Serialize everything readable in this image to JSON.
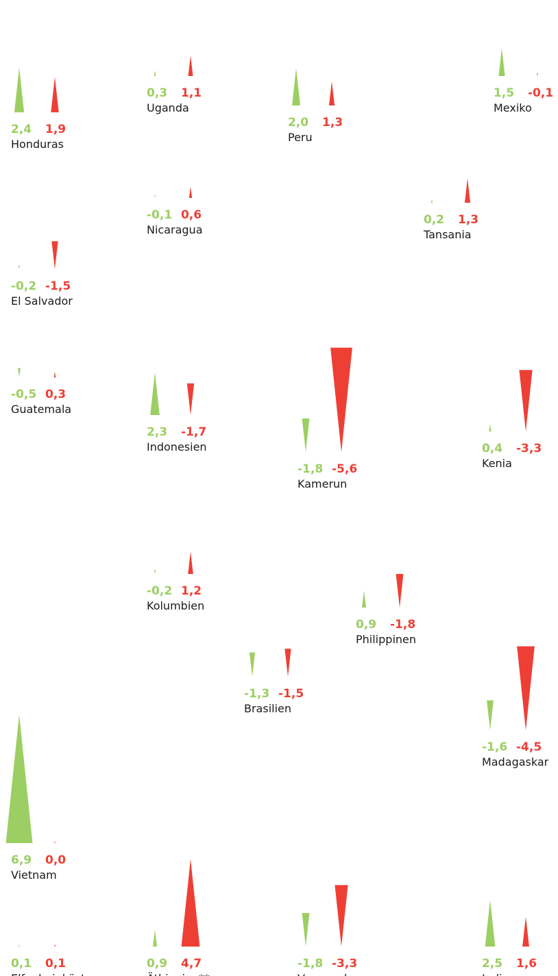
{
  "chart_data": {
    "type": "bar",
    "colors": {
      "green": "#9ccf63",
      "red": "#ee3f35"
    },
    "series": [
      {
        "key": "green",
        "color": "#9ccf63"
      },
      {
        "key": "red",
        "color": "#ee3f35"
      }
    ],
    "panels": [
      {
        "country": "Honduras",
        "green": 2.4,
        "red": 1.9,
        "green_label": "2,4",
        "red_label": "1,9"
      },
      {
        "country": "Uganda",
        "green": 0.3,
        "red": 1.1,
        "green_label": "0,3",
        "red_label": "1,1"
      },
      {
        "country": "Peru",
        "green": 2.0,
        "red": 1.3,
        "green_label": "2,0",
        "red_label": "1,3"
      },
      {
        "country": "Mexiko",
        "green": 1.5,
        "red": -0.1,
        "green_label": "1,5",
        "red_label": "-0,1"
      },
      {
        "country": "Nicaragua",
        "green": -0.1,
        "red": 0.6,
        "green_label": "-0,1",
        "red_label": "0,6"
      },
      {
        "country": "Tansania",
        "green": 0.2,
        "red": 1.3,
        "green_label": "0,2",
        "red_label": "1,3"
      },
      {
        "country": "El Salvador",
        "green": -0.2,
        "red": -1.5,
        "green_label": "-0,2",
        "red_label": "-1,5"
      },
      {
        "country": "Guatemala",
        "green": -0.5,
        "red": 0.3,
        "green_label": "-0,5",
        "red_label": "0,3"
      },
      {
        "country": "Indonesien",
        "green": 2.3,
        "red": -1.7,
        "green_label": "2,3",
        "red_label": "-1,7"
      },
      {
        "country": "Kamerun",
        "green": -1.8,
        "red": -5.6,
        "green_label": "-1,8",
        "red_label": "-5,6"
      },
      {
        "country": "Kenia",
        "green": 0.4,
        "red": -3.3,
        "green_label": "0,4",
        "red_label": "-3,3"
      },
      {
        "country": "Kolumbien",
        "green": -0.2,
        "red": 1.2,
        "green_label": "-0,2",
        "red_label": "1,2"
      },
      {
        "country": "Philippinen",
        "green": 0.9,
        "red": -1.8,
        "green_label": "0,9",
        "red_label": "-1,8"
      },
      {
        "country": "Brasilien",
        "green": -1.3,
        "red": -1.5,
        "green_label": "-1,3",
        "red_label": "-1,5"
      },
      {
        "country": "Madagaskar",
        "green": -1.6,
        "red": -4.5,
        "green_label": "-1,6",
        "red_label": "-4,5"
      },
      {
        "country": "Vietnam",
        "green": 6.9,
        "red": 0.0,
        "green_label": "6,9",
        "red_label": "0,0"
      },
      {
        "country": "Elfenbeinküste",
        "green": 0.1,
        "red": 0.1,
        "green_label": "0,1",
        "red_label": "0,1"
      },
      {
        "country": "Äthiopien**",
        "green": 0.9,
        "red": 4.7,
        "green_label": "0,9",
        "red_label": "4,7"
      },
      {
        "country": "Venezuela",
        "green": -1.8,
        "red": -3.3,
        "green_label": "-1,8",
        "red_label": "-3,3"
      },
      {
        "country": "Indien",
        "green": 2.5,
        "red": 1.6,
        "green_label": "2,5",
        "red_label": "1,6"
      }
    ]
  }
}
